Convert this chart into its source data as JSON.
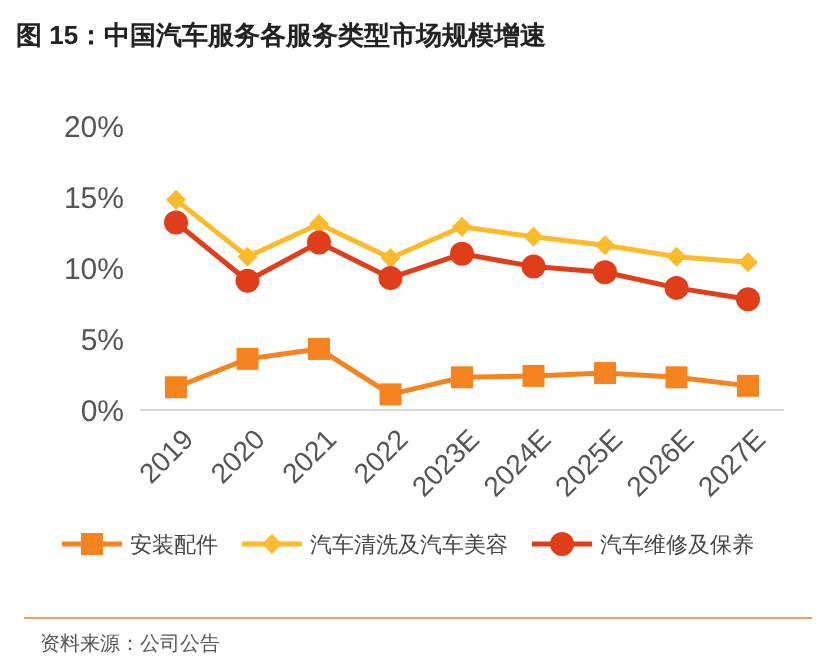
{
  "chart_data": {
    "type": "line",
    "title": "图 15：中国汽车服务各服务类型市场规模增速",
    "categories": [
      "2019",
      "2020",
      "2021",
      "2022",
      "2023E",
      "2024E",
      "2025E",
      "2026E",
      "2027E"
    ],
    "series": [
      {
        "name": "安装配件",
        "color": "#f5831f",
        "marker": "square",
        "values": [
          1.6,
          3.6,
          4.3,
          1.1,
          2.3,
          2.4,
          2.6,
          2.3,
          1.7
        ]
      },
      {
        "name": "汽车清洗及汽车美容",
        "color": "#fbbb2a",
        "marker": "diamond",
        "values": [
          14.8,
          10.8,
          13.1,
          10.7,
          12.9,
          12.2,
          11.6,
          10.8,
          10.4
        ]
      },
      {
        "name": "汽车维修及保养",
        "color": "#e03e1a",
        "marker": "circle",
        "values": [
          13.2,
          9.1,
          11.8,
          9.3,
          11.0,
          10.1,
          9.7,
          8.6,
          7.8
        ]
      }
    ],
    "ylim": [
      0,
      20
    ],
    "yticks": [
      {
        "value": 0,
        "label": "0%"
      },
      {
        "value": 5,
        "label": "5%"
      },
      {
        "value": 10,
        "label": "10%"
      },
      {
        "value": 15,
        "label": "15%"
      },
      {
        "value": 20,
        "label": "20%"
      }
    ],
    "grid": false,
    "legend": "bottom",
    "annotations": [
      "资料来源：公司公告"
    ]
  }
}
